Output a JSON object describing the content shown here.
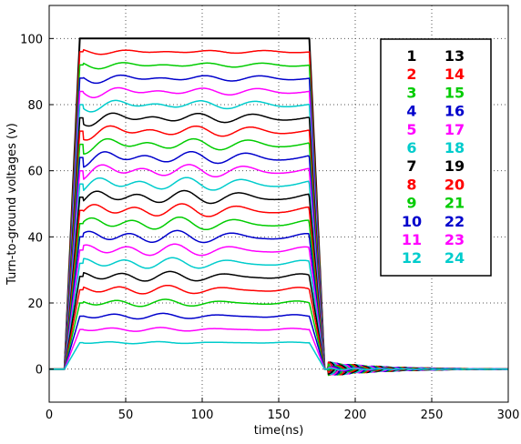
{
  "chart_data": {
    "type": "line",
    "title": "",
    "xlabel": "time(ns)",
    "ylabel": "Turn-to-ground voltages (v)",
    "xlim": [
      0,
      300
    ],
    "ylim": [
      -10,
      110
    ],
    "x_ticks": [
      "0",
      "50",
      "100",
      "150",
      "200",
      "250",
      "300"
    ],
    "y_ticks": [
      "0",
      "20",
      "40",
      "60",
      "80",
      "100"
    ],
    "grid": "dotted",
    "legend_position": "top-right",
    "color_cycle": [
      "#000000",
      "#ff0000",
      "#00cc00",
      "#0000cc",
      "#ff00ff",
      "#00cccc"
    ],
    "x": [
      0,
      10,
      20,
      170,
      180,
      300
    ],
    "series": [
      {
        "name": "1",
        "color": "#000000",
        "values": [
          0,
          0,
          100,
          100,
          0,
          0
        ]
      },
      {
        "name": "2",
        "color": "#ff0000",
        "values": [
          0,
          0,
          96,
          96,
          0,
          0
        ]
      },
      {
        "name": "3",
        "color": "#00cc00",
        "values": [
          0,
          0,
          92,
          92,
          0,
          0
        ]
      },
      {
        "name": "4",
        "color": "#0000cc",
        "values": [
          0,
          0,
          88,
          88,
          0,
          0
        ]
      },
      {
        "name": "5",
        "color": "#ff00ff",
        "values": [
          0,
          0,
          84,
          84,
          0,
          0
        ]
      },
      {
        "name": "6",
        "color": "#00cccc",
        "values": [
          0,
          0,
          80,
          80,
          0,
          0
        ]
      },
      {
        "name": "7",
        "color": "#000000",
        "values": [
          0,
          0,
          76,
          76,
          0,
          0
        ]
      },
      {
        "name": "8",
        "color": "#ff0000",
        "values": [
          0,
          0,
          72,
          72,
          0,
          0
        ]
      },
      {
        "name": "9",
        "color": "#00cc00",
        "values": [
          0,
          0,
          68,
          68,
          0,
          0
        ]
      },
      {
        "name": "10",
        "color": "#0000cc",
        "values": [
          0,
          0,
          64,
          64,
          0,
          0
        ]
      },
      {
        "name": "11",
        "color": "#ff00ff",
        "values": [
          0,
          0,
          60,
          60,
          0,
          0
        ]
      },
      {
        "name": "12",
        "color": "#00cccc",
        "values": [
          0,
          0,
          56,
          56,
          0,
          0
        ]
      },
      {
        "name": "13",
        "color": "#000000",
        "values": [
          0,
          0,
          52,
          52,
          0,
          0
        ]
      },
      {
        "name": "14",
        "color": "#ff0000",
        "values": [
          0,
          0,
          48,
          48,
          0,
          0
        ]
      },
      {
        "name": "15",
        "color": "#00cc00",
        "values": [
          0,
          0,
          44,
          44,
          0,
          0
        ]
      },
      {
        "name": "16",
        "color": "#0000cc",
        "values": [
          0,
          0,
          40,
          40,
          0,
          0
        ]
      },
      {
        "name": "17",
        "color": "#ff00ff",
        "values": [
          0,
          0,
          36,
          36,
          0,
          0
        ]
      },
      {
        "name": "18",
        "color": "#00cccc",
        "values": [
          0,
          0,
          32,
          32,
          0,
          0
        ]
      },
      {
        "name": "19",
        "color": "#000000",
        "values": [
          0,
          0,
          28,
          28,
          0,
          0
        ]
      },
      {
        "name": "20",
        "color": "#ff0000",
        "values": [
          0,
          0,
          24,
          24,
          0,
          0
        ]
      },
      {
        "name": "21",
        "color": "#00cc00",
        "values": [
          0,
          0,
          20,
          20,
          0,
          0
        ]
      },
      {
        "name": "22",
        "color": "#0000cc",
        "values": [
          0,
          0,
          16,
          16,
          0,
          0
        ]
      },
      {
        "name": "23",
        "color": "#ff00ff",
        "values": [
          0,
          0,
          12,
          12,
          0,
          0
        ]
      },
      {
        "name": "24",
        "color": "#00cccc",
        "values": [
          0,
          0,
          8,
          8,
          0,
          0
        ]
      }
    ]
  }
}
